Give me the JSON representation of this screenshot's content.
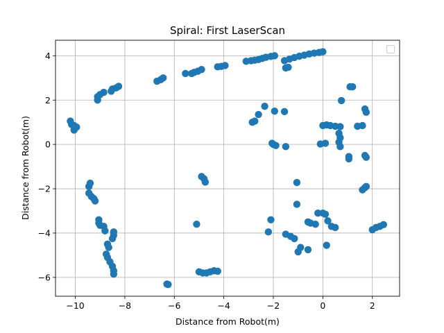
{
  "chart_data": {
    "type": "scatter",
    "title": "Spiral: First LaserScan",
    "xlabel": "Distance from Robot(m)",
    "ylabel": "Distance from Robot(m)",
    "xlim": [
      -10.8,
      3.1
    ],
    "ylim": [
      -6.85,
      4.7
    ],
    "x_ticks": [
      -10,
      -8,
      -6,
      -4,
      -2,
      0,
      2
    ],
    "y_ticks": [
      -6,
      -4,
      -2,
      0,
      2,
      4
    ],
    "x_tick_labels": [
      "−10",
      "−8",
      "−6",
      "−4",
      "−2",
      "0",
      "2"
    ],
    "y_tick_labels": [
      "−6",
      "−4",
      "−2",
      "0",
      "2",
      "4"
    ],
    "grid": true,
    "legend": "upper-right (empty)",
    "marker_color": "#1f77b4",
    "series": [
      {
        "points": [
          [
            -10.2,
            1.05
          ],
          [
            -10.15,
            0.9
          ],
          [
            -10.05,
            0.85
          ],
          [
            -9.95,
            0.78
          ],
          [
            -10.05,
            0.65
          ],
          [
            -9.1,
            2.0
          ],
          [
            -9.1,
            2.15
          ],
          [
            -9.0,
            2.25
          ],
          [
            -8.85,
            2.35
          ],
          [
            -8.55,
            2.4
          ],
          [
            -8.5,
            2.5
          ],
          [
            -8.35,
            2.55
          ],
          [
            -8.25,
            2.62
          ],
          [
            -6.7,
            2.85
          ],
          [
            -6.55,
            2.92
          ],
          [
            -6.45,
            3.0
          ],
          [
            -5.55,
            3.2
          ],
          [
            -5.3,
            3.2
          ],
          [
            -5.2,
            3.25
          ],
          [
            -5.05,
            3.3
          ],
          [
            -4.9,
            3.38
          ],
          [
            -4.25,
            3.5
          ],
          [
            -4.1,
            3.52
          ],
          [
            -3.95,
            3.56
          ],
          [
            -3.1,
            3.75
          ],
          [
            -2.9,
            3.78
          ],
          [
            -2.75,
            3.8
          ],
          [
            -2.6,
            3.83
          ],
          [
            -2.45,
            3.88
          ],
          [
            -2.3,
            3.93
          ],
          [
            -2.1,
            3.97
          ],
          [
            -1.95,
            4.0
          ],
          [
            -1.55,
            3.78
          ],
          [
            -1.35,
            3.85
          ],
          [
            -1.15,
            3.92
          ],
          [
            -0.95,
            3.98
          ],
          [
            -0.75,
            4.03
          ],
          [
            -0.55,
            4.08
          ],
          [
            -0.35,
            4.12
          ],
          [
            -0.15,
            4.15
          ],
          [
            0.0,
            4.18
          ],
          [
            -1.5,
            3.45
          ],
          [
            -1.4,
            3.48
          ],
          [
            -2.35,
            1.72
          ],
          [
            -2.6,
            1.35
          ],
          [
            -2.85,
            1.0
          ],
          [
            -2.75,
            1.05
          ],
          [
            -1.95,
            1.5
          ],
          [
            -1.55,
            1.48
          ],
          [
            -2.05,
            0.05
          ],
          [
            -2.0,
            0.0
          ],
          [
            -1.9,
            -0.05
          ],
          [
            -1.5,
            -0.1
          ],
          [
            0.0,
            0.85
          ],
          [
            0.15,
            0.88
          ],
          [
            0.3,
            0.85
          ],
          [
            0.5,
            0.82
          ],
          [
            0.7,
            0.8
          ],
          [
            -0.1,
            0.02
          ],
          [
            0.1,
            0.05
          ],
          [
            0.65,
            0.5
          ],
          [
            0.7,
            0.3
          ],
          [
            0.65,
            0.1
          ],
          [
            0.7,
            -0.1
          ],
          [
            0.75,
            1.98
          ],
          [
            1.1,
            2.6
          ],
          [
            1.2,
            2.6
          ],
          [
            1.6,
            0.85
          ],
          [
            1.4,
            0.82
          ],
          [
            1.7,
            1.6
          ],
          [
            1.75,
            1.45
          ],
          [
            1.05,
            -0.55
          ],
          [
            1.05,
            -0.65
          ],
          [
            1.7,
            -0.5
          ],
          [
            1.75,
            -0.58
          ],
          [
            1.6,
            -2.05
          ],
          [
            1.7,
            -1.95
          ],
          [
            1.75,
            -1.9
          ],
          [
            -1.05,
            -1.72
          ],
          [
            -1.05,
            -2.7
          ],
          [
            -4.9,
            -1.45
          ],
          [
            -4.8,
            -1.55
          ],
          [
            -4.75,
            -1.7
          ],
          [
            -5.1,
            -3.6
          ],
          [
            -2.1,
            -3.4
          ],
          [
            -2.2,
            -3.95
          ],
          [
            -1.5,
            -4.05
          ],
          [
            -1.3,
            -4.15
          ],
          [
            -1.15,
            -4.25
          ],
          [
            -0.6,
            -3.5
          ],
          [
            -0.5,
            -3.55
          ],
          [
            -0.3,
            -3.6
          ],
          [
            -0.2,
            -3.1
          ],
          [
            0.0,
            -3.1
          ],
          [
            0.1,
            -3.15
          ],
          [
            0.2,
            -3.45
          ],
          [
            0.35,
            -3.7
          ],
          [
            0.5,
            -3.75
          ],
          [
            -0.9,
            -4.65
          ],
          [
            -1.0,
            -4.85
          ],
          [
            -0.6,
            -4.75
          ],
          [
            0.15,
            -4.55
          ],
          [
            2.0,
            -3.85
          ],
          [
            2.15,
            -3.75
          ],
          [
            2.3,
            -3.7
          ],
          [
            2.45,
            -3.62
          ],
          [
            -9.45,
            -1.9
          ],
          [
            -9.4,
            -1.75
          ],
          [
            -9.45,
            -2.2
          ],
          [
            -9.35,
            -2.35
          ],
          [
            -9.25,
            -2.45
          ],
          [
            -9.2,
            -2.55
          ],
          [
            -9.05,
            -3.4
          ],
          [
            -9.05,
            -3.55
          ],
          [
            -9.0,
            -3.65
          ],
          [
            -8.85,
            -3.7
          ],
          [
            -8.8,
            -3.9
          ],
          [
            -8.45,
            -3.95
          ],
          [
            -8.45,
            -4.1
          ],
          [
            -8.5,
            -4.25
          ],
          [
            -8.7,
            -4.5
          ],
          [
            -8.65,
            -4.65
          ],
          [
            -8.75,
            -4.95
          ],
          [
            -8.7,
            -5.1
          ],
          [
            -8.6,
            -5.3
          ],
          [
            -8.5,
            -5.5
          ],
          [
            -8.45,
            -5.7
          ],
          [
            -8.45,
            -5.85
          ],
          [
            -6.3,
            -6.3
          ],
          [
            -6.25,
            -6.32
          ],
          [
            -5.0,
            -5.75
          ],
          [
            -4.85,
            -5.8
          ],
          [
            -4.7,
            -5.8
          ],
          [
            -4.55,
            -5.75
          ],
          [
            -4.4,
            -5.7
          ],
          [
            -4.25,
            -5.72
          ]
        ]
      }
    ]
  }
}
